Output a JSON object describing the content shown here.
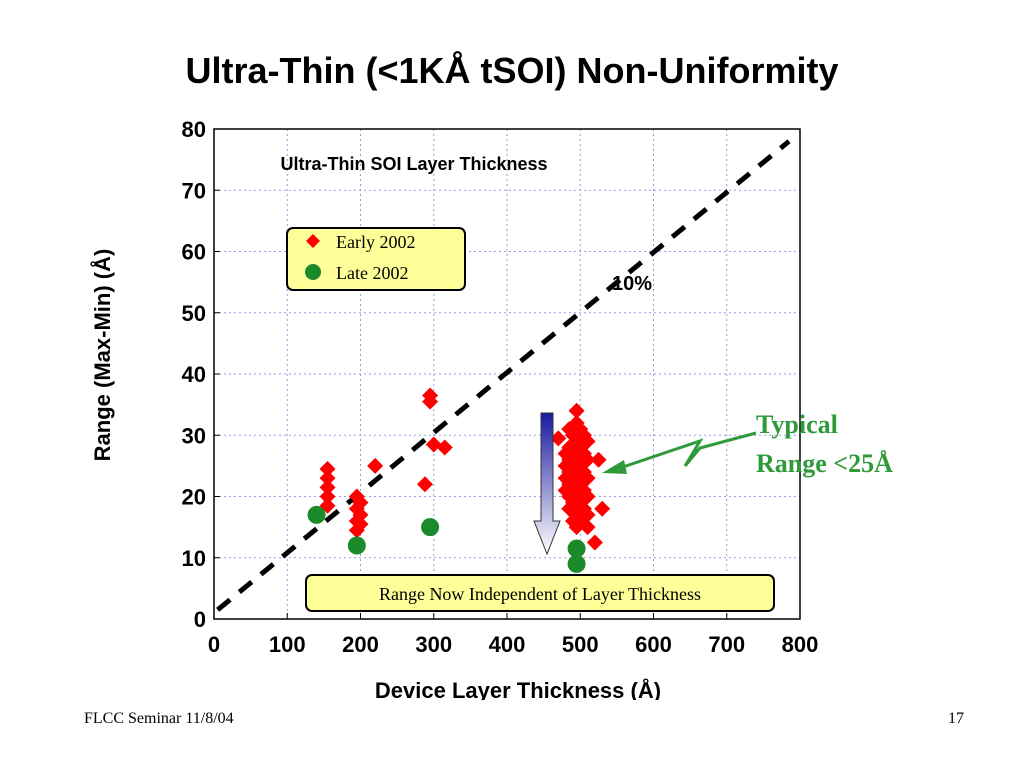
{
  "slide": {
    "title": "Ultra-Thin (<1KÅ tSOI) Non-Uniformity",
    "footer_left": "FLCC Seminar 11/8/04",
    "page_number": "17"
  },
  "chart_data": {
    "type": "scatter",
    "title": "Ultra-Thin SOI Layer Thickness",
    "xlabel": "Device Layer Thickness (Å)",
    "ylabel": "Range (Max-Min)  (Å)",
    "xlim": [
      0,
      800
    ],
    "ylim": [
      0,
      80
    ],
    "xticks": [
      0,
      100,
      200,
      300,
      400,
      500,
      600,
      700,
      800
    ],
    "yticks": [
      0,
      10,
      20,
      30,
      40,
      50,
      60,
      70,
      80
    ],
    "grid": true,
    "legend_position": "upper-left",
    "series": [
      {
        "name": "Early 2002",
        "marker": "diamond",
        "color": "#ff0000",
        "points": [
          [
            155,
            24.5
          ],
          [
            155,
            23
          ],
          [
            155,
            21.5
          ],
          [
            155,
            20
          ],
          [
            155,
            18.5
          ],
          [
            195,
            20
          ],
          [
            195,
            18
          ],
          [
            195,
            16
          ],
          [
            195,
            14.5
          ],
          [
            200,
            19
          ],
          [
            200,
            17
          ],
          [
            200,
            15.5
          ],
          [
            220,
            25
          ],
          [
            288,
            22
          ],
          [
            295,
            36.5
          ],
          [
            295,
            35.5
          ],
          [
            300,
            28.5
          ],
          [
            315,
            28
          ],
          [
            470,
            29.5
          ],
          [
            480,
            27
          ],
          [
            480,
            25
          ],
          [
            480,
            23
          ],
          [
            480,
            21
          ],
          [
            485,
            31
          ],
          [
            485,
            28
          ],
          [
            485,
            26
          ],
          [
            485,
            24
          ],
          [
            485,
            22
          ],
          [
            485,
            20
          ],
          [
            485,
            18
          ],
          [
            490,
            30
          ],
          [
            490,
            27
          ],
          [
            490,
            24
          ],
          [
            490,
            21
          ],
          [
            490,
            19
          ],
          [
            490,
            16
          ],
          [
            495,
            34
          ],
          [
            495,
            32
          ],
          [
            495,
            29
          ],
          [
            495,
            26
          ],
          [
            495,
            23
          ],
          [
            495,
            20
          ],
          [
            495,
            17
          ],
          [
            495,
            15
          ],
          [
            500,
            31
          ],
          [
            500,
            28
          ],
          [
            500,
            25
          ],
          [
            500,
            22
          ],
          [
            500,
            19
          ],
          [
            500,
            16
          ],
          [
            505,
            30
          ],
          [
            505,
            27
          ],
          [
            505,
            24
          ],
          [
            505,
            21
          ],
          [
            505,
            18
          ],
          [
            510,
            29
          ],
          [
            510,
            26
          ],
          [
            510,
            23
          ],
          [
            510,
            20
          ],
          [
            510,
            17
          ],
          [
            510,
            15
          ],
          [
            520,
            12.5
          ],
          [
            525,
            26
          ],
          [
            530,
            18
          ]
        ]
      },
      {
        "name": "Late 2002",
        "marker": "circle",
        "color": "#1a8a2a",
        "points": [
          [
            140,
            17
          ],
          [
            195,
            12
          ],
          [
            295,
            15
          ],
          [
            495,
            11.5
          ],
          [
            495,
            9
          ]
        ]
      }
    ],
    "reference_line": {
      "label": "10%",
      "style": "dashed",
      "color": "#000000",
      "from": [
        5,
        1.5
      ],
      "to": [
        785,
        78
      ]
    },
    "annotations": {
      "box_text": "Range Now Independent of Layer Thickness",
      "callout_line1": "Typical",
      "callout_line2": "Range <25Å",
      "callout_color": "#2e9a3a"
    }
  }
}
